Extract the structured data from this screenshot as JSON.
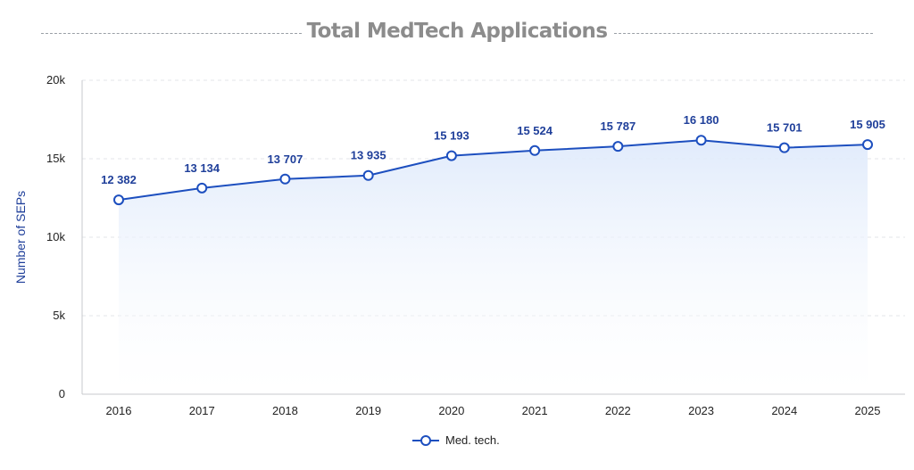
{
  "title": "Total MedTech Applications",
  "chart_data": {
    "type": "line",
    "title": "Total MedTech Applications",
    "xlabel": "",
    "ylabel": "Number of SEPs",
    "categories": [
      "2016",
      "2017",
      "2018",
      "2019",
      "2020",
      "2021",
      "2022",
      "2023",
      "2024",
      "2025"
    ],
    "series": [
      {
        "name": "Med. tech.",
        "values": [
          12382,
          13134,
          13707,
          13935,
          15193,
          15524,
          15787,
          16180,
          15701,
          15905
        ],
        "labels": [
          "12 382",
          "13 134",
          "13 707",
          "13 935",
          "15 193",
          "15 524",
          "15 787",
          "16 180",
          "15 701",
          "15 905"
        ],
        "color": "#1d4fbf"
      }
    ],
    "ylim": [
      0,
      20000
    ],
    "yticks": [
      0,
      5000,
      10000,
      15000,
      20000
    ],
    "ytick_labels": [
      "0",
      "5k",
      "10k",
      "15k",
      "20k"
    ],
    "grid": true,
    "legend_position": "bottom-center",
    "colors": {
      "line": "#1d4fbf",
      "label": "#1f3f9a",
      "axis_label": "#1f3f9a",
      "area_top": "#dfeafb",
      "grid": "#e3e5e8",
      "tick_text": "#222222"
    }
  }
}
